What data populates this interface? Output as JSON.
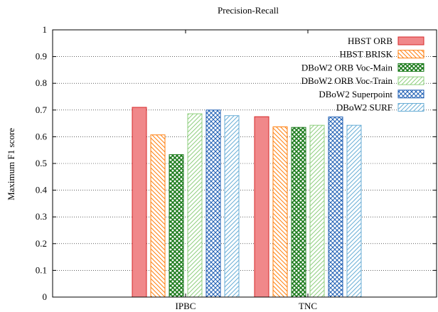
{
  "chart_data": {
    "type": "bar",
    "title": "Precision-Recall",
    "xlabel": "",
    "ylabel": "Maximum F1 score",
    "ylim": [
      0,
      1
    ],
    "yticks": [
      "0",
      "0.1",
      "0.2",
      "0.3",
      "0.4",
      "0.5",
      "0.6",
      "0.7",
      "0.8",
      "0.9",
      "1"
    ],
    "grid": "horizontal dotted",
    "legend_position": "top-right",
    "categories": [
      "IPBC",
      "TNC"
    ],
    "series": [
      {
        "name": "HBST ORB",
        "values": [
          0.71,
          0.675
        ],
        "color": "#d62728",
        "pattern": "solid"
      },
      {
        "name": "HBST BRISK",
        "values": [
          0.607,
          0.637
        ],
        "color": "#ff7f0e",
        "pattern": "diag-back"
      },
      {
        "name": "DBoW2 ORB Voc-Main",
        "values": [
          0.533,
          0.635
        ],
        "color": "#1a7a1a",
        "pattern": "crosshatch-dense"
      },
      {
        "name": "DBoW2 ORB Voc-Train",
        "values": [
          0.686,
          0.643
        ],
        "color": "#8fcf7f",
        "pattern": "diag-fwd"
      },
      {
        "name": "DBoW2 Superpoint",
        "values": [
          0.7,
          0.674
        ],
        "color": "#1f5fb4",
        "pattern": "crosshatch"
      },
      {
        "name": "DBoW2 SURF",
        "values": [
          0.679,
          0.643
        ],
        "color": "#6aaed6",
        "pattern": "diag-fwd-fine"
      }
    ]
  }
}
